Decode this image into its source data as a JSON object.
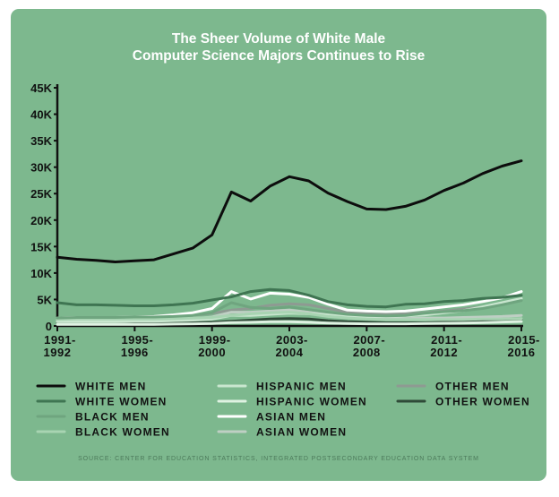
{
  "chart_data": {
    "type": "line",
    "title": "The Sheer Volume of White Male\nComputer Science Majors Continues to Rise",
    "source": "SOURCE: CENTER FOR EDUCATION STATISTICS, INTEGRATED POSTSECONDARY EDUCATION DATA SYSTEM",
    "xlabel": "",
    "ylabel": "",
    "ylim": [
      0,
      45000
    ],
    "y_ticks": [
      0,
      5000,
      10000,
      15000,
      20000,
      25000,
      30000,
      35000,
      40000,
      45000
    ],
    "y_tick_labels": [
      "0",
      "5K",
      "10K",
      "15K",
      "20K",
      "25K",
      "30K",
      "35K",
      "40K",
      "45K"
    ],
    "x": [
      "1991-1992",
      "1992-1993",
      "1993-1994",
      "1994-1995",
      "1995-1996",
      "1996-1997",
      "1997-1998",
      "1998-1999",
      "1999-2000",
      "2000-2001",
      "2001-2002",
      "2002-2003",
      "2003-2004",
      "2004-2005",
      "2005-2006",
      "2006-2007",
      "2007-2008",
      "2008-2009",
      "2009-2010",
      "2010-2011",
      "2011-2012",
      "2012-2013",
      "2013-2014",
      "2014-2015",
      "2015-2016"
    ],
    "x_tick_labels": [
      {
        "index": 0,
        "line1": "1991-",
        "line2": "1992"
      },
      {
        "index": 4,
        "line1": "1995-",
        "line2": "1996"
      },
      {
        "index": 8,
        "line1": "1999-",
        "line2": "2000"
      },
      {
        "index": 12,
        "line1": "2003-",
        "line2": "2004"
      },
      {
        "index": 16,
        "line1": "2007-",
        "line2": "2008"
      },
      {
        "index": 20,
        "line1": "2011-",
        "line2": "2012"
      },
      {
        "index": 24,
        "line1": "2015-",
        "line2": "2016"
      }
    ],
    "grid": false,
    "legend_position": "bottom",
    "series": [
      {
        "name": "WHITE MEN",
        "color": "#0d0d0d",
        "width": 3,
        "values": [
          13000,
          12600,
          12400,
          12100,
          12300,
          12500,
          13600,
          14700,
          17200,
          25300,
          23600,
          26400,
          28200,
          27400,
          25100,
          23500,
          22100,
          22000,
          22600,
          23800,
          25600,
          27000,
          28800,
          30200,
          31200
        ]
      },
      {
        "name": "WHITE WOMEN",
        "color": "#3f7552",
        "width": 3,
        "values": [
          4400,
          4000,
          4000,
          3900,
          3800,
          3800,
          4000,
          4300,
          4900,
          5500,
          6500,
          6900,
          6700,
          5800,
          4600,
          4000,
          3700,
          3600,
          4100,
          4200,
          4600,
          4800,
          5200,
          5400,
          5800
        ]
      },
      {
        "name": "BLACK MEN",
        "color": "#6fa57f",
        "width": 3,
        "values": [
          1500,
          1600,
          1600,
          1600,
          1700,
          1700,
          1800,
          2000,
          2500,
          4400,
          3500,
          3300,
          3600,
          3100,
          2600,
          2200,
          2000,
          1900,
          2000,
          2400,
          2700,
          2900,
          3300,
          4000,
          4800
        ]
      },
      {
        "name": "BLACK WOMEN",
        "color": "#a8d4b2",
        "width": 3,
        "values": [
          1200,
          1300,
          1300,
          1300,
          1300,
          1300,
          1400,
          1500,
          1600,
          2000,
          2300,
          2500,
          2600,
          2300,
          1800,
          1500,
          1300,
          1200,
          1200,
          1200,
          1200,
          1200,
          1300,
          1300,
          1400
        ]
      },
      {
        "name": "HISPANIC MEN",
        "color": "#c9e6cf",
        "width": 3,
        "values": [
          800,
          800,
          800,
          800,
          900,
          900,
          1000,
          1100,
          1300,
          2000,
          2000,
          2200,
          2400,
          2300,
          2100,
          1900,
          1800,
          1800,
          1900,
          2100,
          2500,
          2900,
          3600,
          4400,
          5200
        ]
      },
      {
        "name": "HISPANIC WOMEN",
        "color": "#dff2e2",
        "width": 3,
        "values": [
          300,
          300,
          300,
          300,
          300,
          300,
          350,
          400,
          450,
          650,
          700,
          800,
          800,
          700,
          550,
          450,
          400,
          400,
          400,
          450,
          500,
          550,
          650,
          750,
          850
        ]
      },
      {
        "name": "ASIAN MEN",
        "color": "#ffffff",
        "width": 3,
        "values": [
          1500,
          1600,
          1600,
          1600,
          1700,
          1800,
          2100,
          2500,
          3300,
          6500,
          5100,
          6200,
          6000,
          5400,
          4100,
          3000,
          2800,
          2700,
          2800,
          3200,
          3600,
          4000,
          4600,
          5300,
          6500
        ]
      },
      {
        "name": "ASIAN WOMEN",
        "color": "#bfcfc4",
        "width": 3,
        "values": [
          900,
          1000,
          1000,
          1000,
          1000,
          1000,
          1100,
          1300,
          1700,
          2600,
          2600,
          2800,
          3000,
          2600,
          2100,
          1700,
          1500,
          1400,
          1400,
          1500,
          1500,
          1600,
          1700,
          1800,
          2000
        ]
      },
      {
        "name": "OTHER MEN",
        "color": "#8e9a92",
        "width": 3,
        "values": [
          1000,
          1100,
          1200,
          1200,
          1400,
          1500,
          1700,
          2000,
          2400,
          3000,
          3300,
          3900,
          4200,
          4000,
          3300,
          2600,
          2300,
          2200,
          2300,
          2500,
          2800,
          3200,
          3600,
          4200,
          5000
        ]
      },
      {
        "name": "OTHER WOMEN",
        "color": "#2f4a38",
        "width": 3,
        "values": [
          400,
          400,
          400,
          400,
          450,
          450,
          500,
          600,
          700,
          900,
          1100,
          1300,
          1400,
          1300,
          1000,
          800,
          700,
          600,
          600,
          600,
          700,
          750,
          900,
          1100,
          1300
        ]
      }
    ]
  }
}
